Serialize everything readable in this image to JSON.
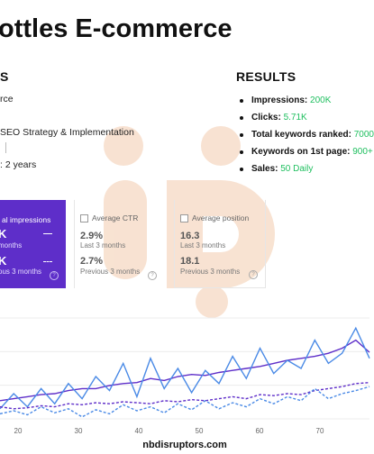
{
  "title": "ottles E-commerce",
  "left": {
    "heading": "S",
    "lines": [
      "rce",
      "SEO Strategy & Implementation",
      ": 2 years"
    ]
  },
  "results": {
    "heading": "RESULTS",
    "items": [
      {
        "label": "Impressions:",
        "value": "200K"
      },
      {
        "label": "Clicks:",
        "value": "5.71K"
      },
      {
        "label": "Total keywords ranked:",
        "value": "7000"
      },
      {
        "label": "Keywords on 1st page:",
        "value": "900+"
      },
      {
        "label": "Sales:",
        "value": "50 Daily"
      }
    ]
  },
  "cards": {
    "impressions": {
      "label": "al impressions",
      "value1": "K",
      "sub1": "months",
      "value2": "K",
      "sub2": "ous 3 months"
    },
    "ctr": {
      "label": "Average CTR",
      "value1": "2.9%",
      "sub1": "Last 3 months",
      "value2": "2.7%",
      "sub2": "Previous 3 months"
    },
    "position": {
      "label": "Average position",
      "value1": "16.3",
      "sub1": "Last 3 months",
      "value2": "18.1",
      "sub2": "Previous 3 months"
    }
  },
  "help_glyph": "?",
  "chart_data": {
    "type": "line",
    "x_ticks": [
      "20",
      "30",
      "40",
      "50",
      "60",
      "70"
    ],
    "series": [
      {
        "color": "#5e2ec9",
        "style": "solid",
        "values": [
          0.18,
          0.2,
          0.22,
          0.24,
          0.25,
          0.28,
          0.3,
          0.3,
          0.33,
          0.35,
          0.36,
          0.4,
          0.38,
          0.42,
          0.44,
          0.43,
          0.46,
          0.48,
          0.5,
          0.52,
          0.55,
          0.58,
          0.6,
          0.62,
          0.65,
          0.7,
          0.78,
          0.66
        ]
      },
      {
        "color": "#4a8ae6",
        "style": "solid",
        "values": [
          0.1,
          0.25,
          0.12,
          0.3,
          0.15,
          0.35,
          0.2,
          0.42,
          0.28,
          0.55,
          0.22,
          0.6,
          0.3,
          0.5,
          0.26,
          0.48,
          0.35,
          0.62,
          0.4,
          0.7,
          0.45,
          0.58,
          0.5,
          0.78,
          0.55,
          0.65,
          0.9,
          0.6
        ]
      },
      {
        "color": "#5e2ec9",
        "style": "dashed",
        "values": [
          0.12,
          0.1,
          0.11,
          0.13,
          0.12,
          0.15,
          0.14,
          0.16,
          0.15,
          0.17,
          0.16,
          0.15,
          0.18,
          0.17,
          0.19,
          0.18,
          0.2,
          0.22,
          0.2,
          0.24,
          0.23,
          0.25,
          0.24,
          0.28,
          0.3,
          0.32,
          0.35,
          0.36
        ]
      },
      {
        "color": "#4a8ae6",
        "style": "dashed",
        "values": [
          0.05,
          0.08,
          0.04,
          0.12,
          0.06,
          0.1,
          0.02,
          0.09,
          0.05,
          0.14,
          0.08,
          0.12,
          0.06,
          0.15,
          0.09,
          0.18,
          0.1,
          0.16,
          0.12,
          0.2,
          0.15,
          0.22,
          0.18,
          0.3,
          0.2,
          0.25,
          0.28,
          0.32
        ]
      }
    ]
  },
  "footer": "nbdisruptors.com",
  "colors": {
    "accent": "#5e2ec9",
    "positive": "#1fbf5f",
    "watermark": "#f6d9c3"
  }
}
